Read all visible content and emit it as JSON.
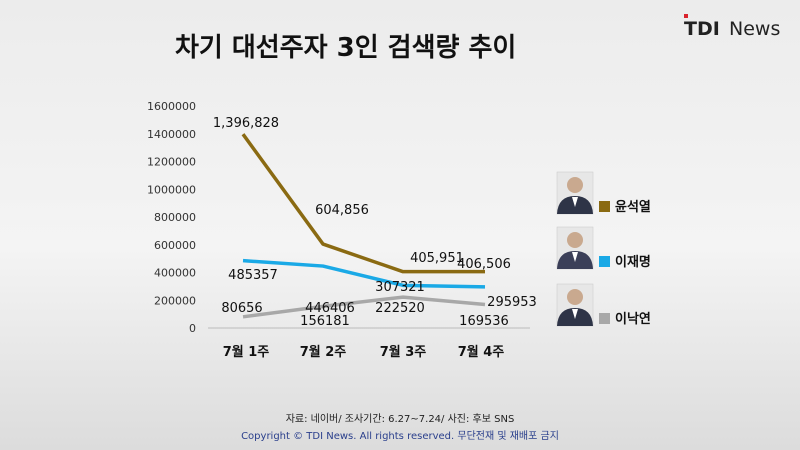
{
  "header": {
    "title": "차기 대선주자 3인 검색량 추이",
    "logo_left": "TDI",
    "logo_right": "News"
  },
  "chart_data": {
    "type": "line",
    "categories": [
      "7월 1주",
      "7월 2주",
      "7월 3주",
      "7월 4주"
    ],
    "ylim": [
      0,
      1600000
    ],
    "yticks": [
      "1600000",
      "1400000",
      "1200000",
      "1000000",
      "800000",
      "600000",
      "400000",
      "200000",
      "0"
    ],
    "grid": false,
    "legend_position": "right",
    "series": [
      {
        "name": "윤석열",
        "color": "#8a6a12",
        "values": [
          1396828,
          604856,
          405951,
          406506
        ],
        "labels": [
          "1,396,828",
          "604,856",
          "405,951",
          "406,506"
        ]
      },
      {
        "name": "이재명",
        "color": "#1aa9e6",
        "values": [
          485357,
          446406,
          307321,
          295953
        ],
        "labels": [
          "485357",
          "446406",
          "307321",
          "295953"
        ]
      },
      {
        "name": "이낙연",
        "color": "#a8a8a8",
        "values": [
          80656,
          156181,
          222520,
          169536
        ],
        "labels": [
          "80656",
          "156181",
          "222520",
          "169536"
        ]
      }
    ]
  },
  "footer": {
    "source": "자료: 네이버/ 조사기간: 6.27~7.24/ 사진: 후보 SNS",
    "copyright": "Copyright © TDI News. All rights reserved. 무단전재 및 재배포 금지"
  }
}
